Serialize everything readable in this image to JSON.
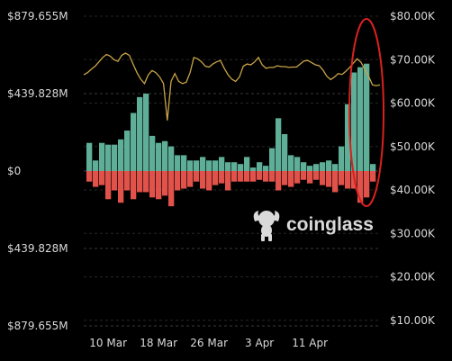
{
  "chart_data": {
    "type": "bar",
    "y_left": {
      "ticks": [
        879.655,
        439.828,
        0,
        -439.828,
        -879.655
      ],
      "tick_labels": [
        "$879.655M",
        "$439.828M",
        "$0",
        "$439.828M",
        "$879.655M"
      ],
      "range": [
        -879.655,
        879.655
      ]
    },
    "y_right": {
      "ticks": [
        80,
        70,
        60,
        50,
        40,
        30,
        20,
        10
      ],
      "tick_labels": [
        "$80.00K",
        "$70.00K",
        "$60.00K",
        "$50.00K",
        "$40.00K",
        "$30.00K",
        "$20.00K",
        "$10.00K"
      ],
      "range": [
        0,
        80
      ]
    },
    "x_labels": [
      {
        "text": "10 Mar",
        "index": 3
      },
      {
        "text": "18 Mar",
        "index": 11
      },
      {
        "text": "26 Mar",
        "index": 19
      },
      {
        "text": "3 Apr",
        "index": 27
      },
      {
        "text": "11 Apr",
        "index": 35
      }
    ],
    "series": [
      {
        "values": [
          160,
          60,
          160,
          150,
          150,
          180,
          230,
          330,
          420,
          440,
          200,
          160,
          170,
          140,
          90,
          90,
          60,
          60,
          80,
          60,
          60,
          80,
          50,
          50,
          40,
          80,
          20,
          50,
          30,
          130,
          300,
          210,
          90,
          80,
          50,
          30,
          40,
          50,
          60,
          40,
          140,
          380,
          560,
          590,
          610,
          40
        ]
      },
      {
        "values": [
          -60,
          -90,
          -80,
          -160,
          -110,
          -180,
          -110,
          -160,
          -120,
          -120,
          -150,
          -160,
          -140,
          -200,
          -110,
          -100,
          -90,
          -60,
          -100,
          -110,
          -80,
          -70,
          -110,
          -60,
          -60,
          -60,
          -60,
          -50,
          -60,
          -60,
          -110,
          -80,
          -90,
          -70,
          -50,
          -70,
          -50,
          -80,
          -90,
          -120,
          -80,
          -100,
          -100,
          -180,
          -150,
          -60
        ]
      },
      {
        "values": [
          66.5,
          67.0,
          67.8,
          68.5,
          69.5,
          70.5,
          71.2,
          70.8,
          70.0,
          69.6,
          71.0,
          71.5,
          71.0,
          69.0,
          67.0,
          65.5,
          64.5,
          66.5,
          67.5,
          67.0,
          66.0,
          64.5,
          56.0,
          65.0,
          66.8,
          65.0,
          64.5,
          64.8,
          67.0,
          70.5,
          70.2,
          69.5,
          68.5,
          68.3,
          69.0,
          69.5,
          69.8,
          68.0,
          66.5,
          65.5,
          65.0,
          66.0,
          68.5,
          69.0,
          68.8,
          69.5,
          70.5,
          68.8,
          68.0,
          68.2,
          68.2,
          68.6,
          68.4,
          68.4,
          68.2,
          68.3,
          68.3,
          69.0,
          69.7,
          69.8,
          69.3,
          68.8,
          68.6,
          67.6,
          66.2,
          65.4,
          66.0,
          66.8,
          66.6,
          67.3,
          68.2,
          69.2,
          70.2,
          69.4,
          67.8,
          66.2,
          64.2,
          64.0,
          64.2
        ],
        "axis": "right"
      }
    ],
    "colors": {
      "positive_bar": "#5fae98",
      "negative_bar": "#e0524a",
      "price_line": "#c9a447",
      "highlight_ellipse": "#d8211f",
      "grid": "#3a3a3a",
      "background": "#000000"
    },
    "highlight": "ellipse around the last three bars (11 Apr)",
    "grid": "horizontal dashed",
    "watermark": "coinglass"
  }
}
